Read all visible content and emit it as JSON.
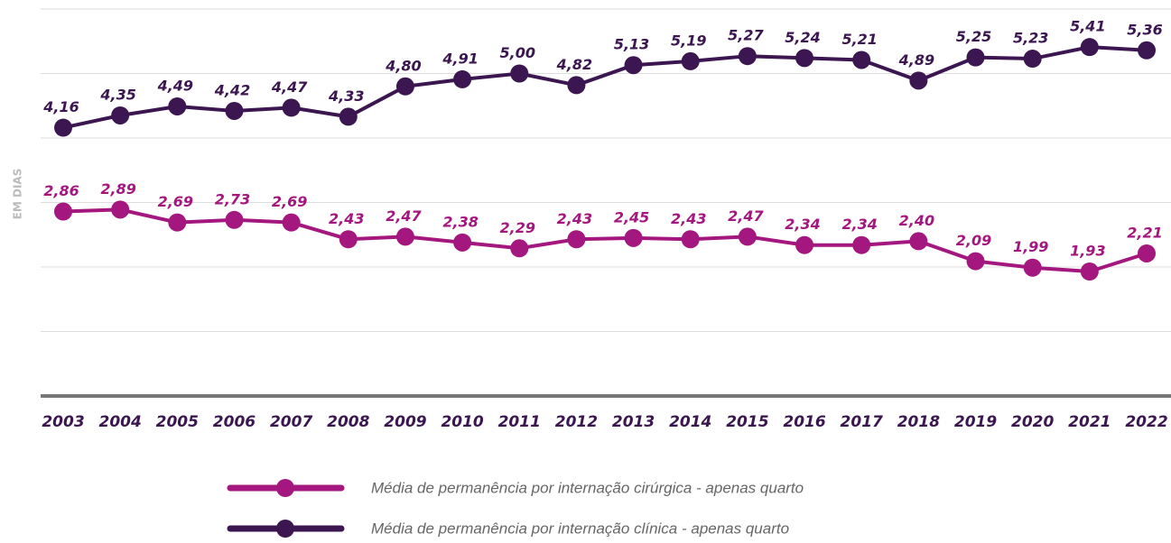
{
  "chart_data": {
    "type": "line",
    "y_label": "EM DIAS",
    "categories": [
      "2003",
      "2004",
      "2005",
      "2006",
      "2007",
      "2008",
      "2009",
      "2010",
      "2011",
      "2012",
      "2013",
      "2014",
      "2015",
      "2016",
      "2017",
      "2018",
      "2019",
      "2020",
      "2021",
      "2022"
    ],
    "series": [
      {
        "name": "Média de permanência por internação cirúrgica - apenas quarto",
        "color": "#a3177f",
        "values": [
          2.86,
          2.89,
          2.69,
          2.73,
          2.69,
          2.43,
          2.47,
          2.38,
          2.29,
          2.43,
          2.45,
          2.43,
          2.47,
          2.34,
          2.34,
          2.4,
          2.09,
          1.99,
          1.93,
          2.21
        ],
        "value_labels": [
          "2,86",
          "2,89",
          "2,69",
          "2,73",
          "2,69",
          "2,43",
          "2,47",
          "2,38",
          "2,29",
          "2,43",
          "2,45",
          "2,43",
          "2,47",
          "2,34",
          "2,34",
          "2,40",
          "2,09",
          "1,99",
          "1,93",
          "2,21"
        ]
      },
      {
        "name": "Média de permanência por internação clínica - apenas quarto",
        "color": "#3b1650",
        "values": [
          4.16,
          4.35,
          4.49,
          4.42,
          4.47,
          4.33,
          4.8,
          4.91,
          5.0,
          4.82,
          5.13,
          5.19,
          5.27,
          5.24,
          5.21,
          4.89,
          5.25,
          5.23,
          5.41,
          5.36
        ],
        "value_labels": [
          "4,16",
          "4,35",
          "4,49",
          "4,42",
          "4,47",
          "4,33",
          "4,80",
          "4,91",
          "5,00",
          "4,82",
          "5,13",
          "5,19",
          "5,27",
          "5,24",
          "5,21",
          "4,89",
          "5,25",
          "5,23",
          "5,41",
          "5,36"
        ]
      }
    ],
    "ylim": [
      0,
      6
    ],
    "yticks": [
      0,
      1,
      2,
      3,
      4,
      5,
      6
    ],
    "grid": true
  }
}
